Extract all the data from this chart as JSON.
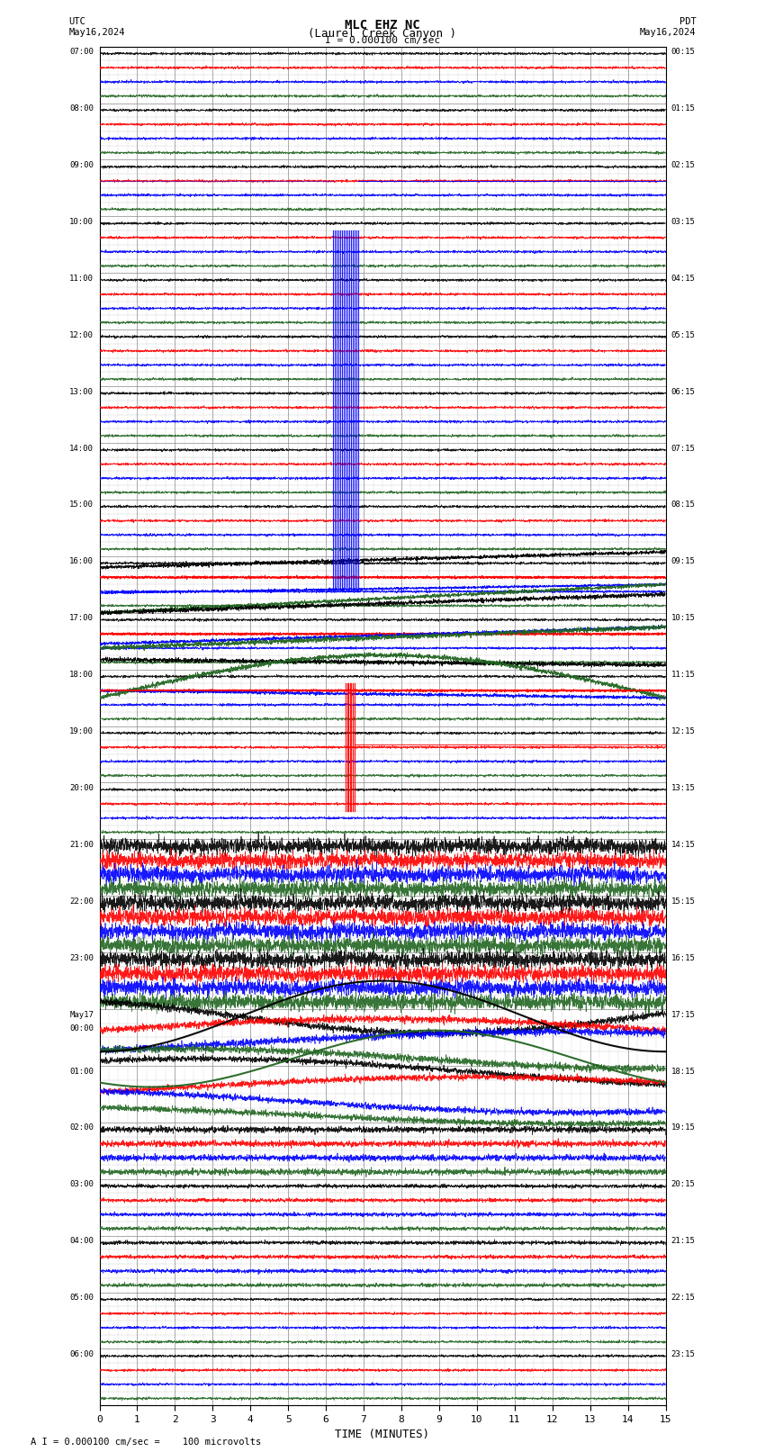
{
  "title_line1": "MLC EHZ NC",
  "title_line2": "(Laurel Creek Canyon )",
  "title_line3": "I = 0.000100 cm/sec",
  "utc_label": "UTC\nMay16,2024",
  "pdt_label": "PDT\nMay16,2024",
  "xlabel": "TIME (MINUTES)",
  "footer": "A I = 0.000100 cm/sec =    100 microvolts",
  "xlim": [
    0,
    15
  ],
  "xticks": [
    0,
    1,
    2,
    3,
    4,
    5,
    6,
    7,
    8,
    9,
    10,
    11,
    12,
    13,
    14,
    15
  ],
  "left_times": [
    "07:00",
    "08:00",
    "09:00",
    "10:00",
    "11:00",
    "12:00",
    "13:00",
    "14:00",
    "15:00",
    "16:00",
    "17:00",
    "18:00",
    "19:00",
    "20:00",
    "21:00",
    "22:00",
    "23:00",
    "May17\n00:00",
    "01:00",
    "02:00",
    "03:00",
    "04:00",
    "05:00",
    "06:00"
  ],
  "right_times": [
    "00:15",
    "01:15",
    "02:15",
    "03:15",
    "04:15",
    "05:15",
    "06:15",
    "07:15",
    "08:15",
    "09:15",
    "10:15",
    "11:15",
    "12:15",
    "13:15",
    "14:15",
    "15:15",
    "16:15",
    "17:15",
    "18:15",
    "19:15",
    "20:15",
    "21:15",
    "22:15",
    "23:15"
  ],
  "n_rows": 24,
  "traces_per_row": 4,
  "bg_color": "#ffffff",
  "grid_color": "#888888",
  "minor_grid_color": "#cccccc"
}
